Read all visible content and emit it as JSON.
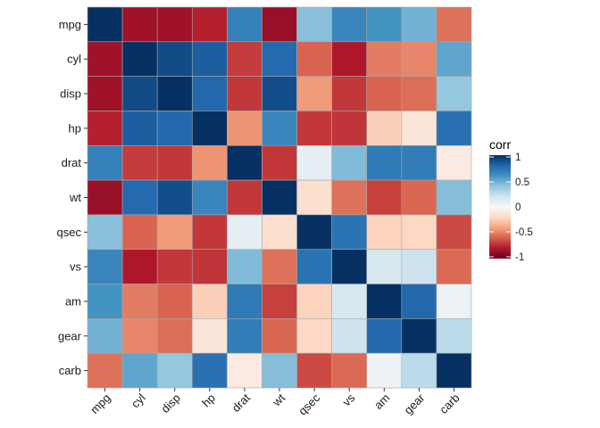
{
  "chart_data": {
    "type": "heatmap",
    "title": "",
    "xlabel": "",
    "ylabel": "",
    "variables": [
      "mpg",
      "cyl",
      "disp",
      "hp",
      "drat",
      "wt",
      "qsec",
      "vs",
      "am",
      "gear",
      "carb"
    ],
    "matrix": [
      [
        1.0,
        -0.85,
        -0.85,
        -0.78,
        0.68,
        -0.87,
        0.42,
        0.66,
        0.6,
        0.48,
        -0.55
      ],
      [
        -0.85,
        1.0,
        0.9,
        0.83,
        -0.7,
        0.78,
        -0.59,
        -0.81,
        -0.52,
        -0.49,
        0.53
      ],
      [
        -0.85,
        0.9,
        1.0,
        0.79,
        -0.71,
        0.89,
        -0.43,
        -0.71,
        -0.59,
        -0.56,
        0.39
      ],
      [
        -0.78,
        0.83,
        0.79,
        1.0,
        -0.45,
        0.66,
        -0.71,
        -0.72,
        -0.24,
        -0.13,
        0.75
      ],
      [
        0.68,
        -0.7,
        -0.71,
        -0.45,
        1.0,
        -0.71,
        0.09,
        0.44,
        0.71,
        0.7,
        -0.09
      ],
      [
        -0.87,
        0.78,
        0.89,
        0.66,
        -0.71,
        1.0,
        -0.17,
        -0.55,
        -0.69,
        -0.58,
        0.43
      ],
      [
        0.42,
        -0.59,
        -0.43,
        -0.71,
        0.09,
        -0.17,
        1.0,
        0.74,
        -0.23,
        -0.21,
        -0.66
      ],
      [
        0.66,
        -0.81,
        -0.71,
        -0.72,
        0.44,
        -0.55,
        0.74,
        1.0,
        0.17,
        0.21,
        -0.57
      ],
      [
        0.6,
        -0.52,
        -0.59,
        -0.24,
        0.71,
        -0.69,
        -0.23,
        0.17,
        1.0,
        0.79,
        0.06
      ],
      [
        0.48,
        -0.49,
        -0.56,
        -0.13,
        0.7,
        -0.58,
        -0.21,
        0.21,
        0.79,
        1.0,
        0.27
      ],
      [
        -0.55,
        0.53,
        0.39,
        0.75,
        -0.09,
        0.43,
        -0.66,
        -0.57,
        0.06,
        0.27,
        1.0
      ]
    ],
    "legend": {
      "title": "corr",
      "ticks": [
        1,
        0.5,
        0,
        -0.5,
        -1
      ],
      "tick_labels": [
        "1",
        "0.5",
        "0",
        "-0.5",
        "-1"
      ],
      "position": "right"
    },
    "colors": {
      "low": "#67001f",
      "mid": "#f7f7f7",
      "high": "#053061",
      "scale": [
        "#67001f",
        "#b2182b",
        "#d6604d",
        "#f4a582",
        "#fddbc7",
        "#f7f7f7",
        "#d1e5f0",
        "#92c5de",
        "#4393c3",
        "#2166ac",
        "#053061"
      ],
      "panel_background": "#ebebeb",
      "tile_border": "#a9a9a9"
    }
  }
}
